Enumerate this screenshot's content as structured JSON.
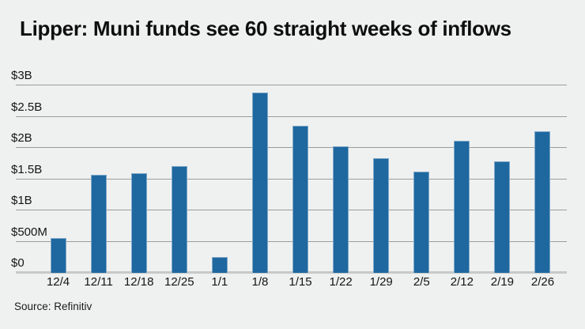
{
  "title": "Lipper: Muni funds see 60 straight weeks of inflows",
  "source": "Source: Refinitiv",
  "colors": {
    "bg": "#eff1f0",
    "bar": "#1e689f",
    "bar-edge": "#7fa7c9",
    "grid": "#9a9d9c",
    "axis": "#c6c9c8",
    "text": "#141414"
  },
  "chart_data": {
    "type": "bar",
    "title": "Lipper: Muni funds see 60 straight weeks of inflows",
    "source": "Source: Refinitiv",
    "categories": [
      "12/4",
      "12/11",
      "12/18",
      "12/25",
      "1/1",
      "1/8",
      "1/15",
      "1/22",
      "1/29",
      "2/5",
      "2/12",
      "2/19",
      "2/26"
    ],
    "values": [
      0.56,
      1.57,
      1.59,
      1.71,
      0.25,
      2.89,
      2.35,
      2.03,
      1.83,
      1.62,
      2.12,
      1.78,
      2.27
    ],
    "unit": "USD billions",
    "xlabel": "",
    "ylabel": "",
    "ylim": [
      0,
      3
    ],
    "y_ticks": [
      {
        "value": 3,
        "label": "$3B"
      },
      {
        "value": 2.5,
        "label": "$2.5B"
      },
      {
        "value": 2,
        "label": "$2B"
      },
      {
        "value": 1.5,
        "label": "$1.5B"
      },
      {
        "value": 1,
        "label": "$1B"
      },
      {
        "value": 0.5,
        "label": "$500M"
      },
      {
        "value": 0,
        "label": "$0"
      }
    ],
    "grid": "horizontal",
    "legend": "none",
    "bar_color": "#1e689f"
  }
}
